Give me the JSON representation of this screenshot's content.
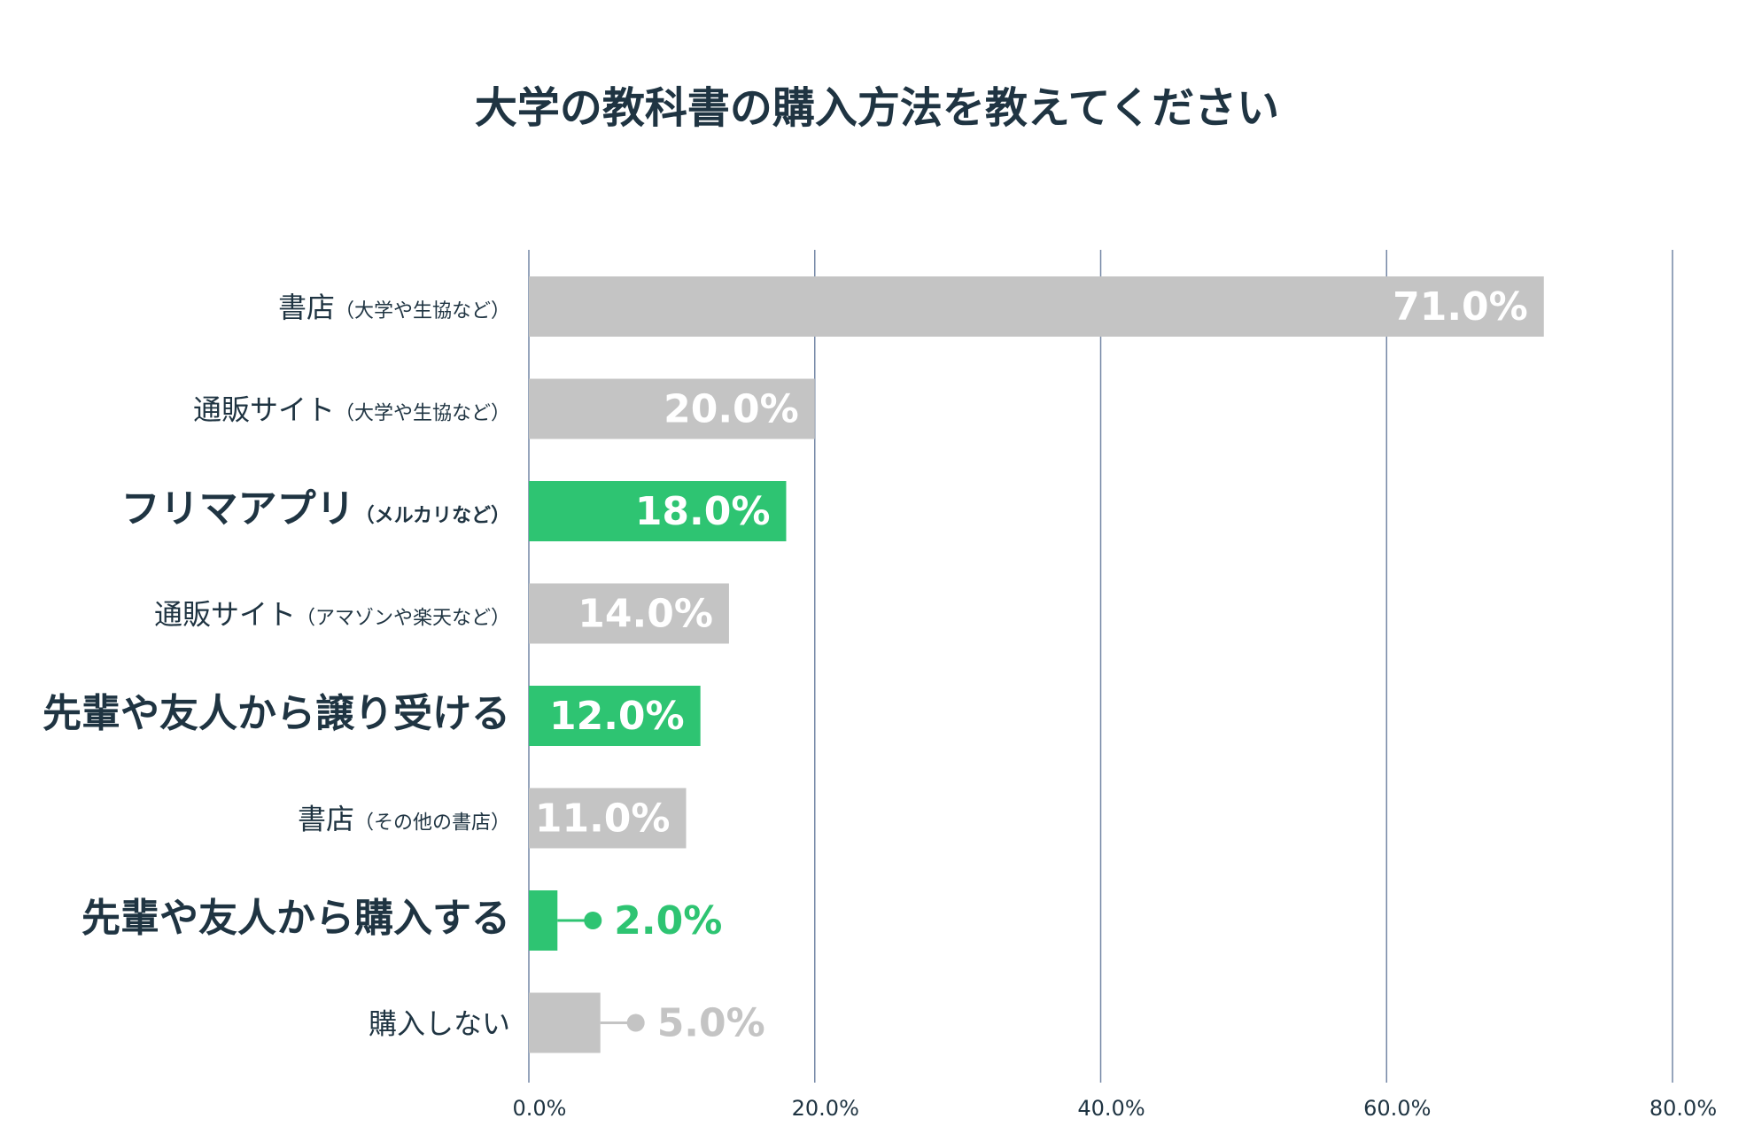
{
  "chart_data": {
    "type": "bar",
    "orientation": "horizontal",
    "title": "大学の教科書の購入方法を教えてください",
    "xlim": [
      0,
      80
    ],
    "xticks": [
      0,
      20,
      40,
      60,
      80
    ],
    "xtick_labels": [
      "0.0%",
      "20.0%",
      "40.0%",
      "60.0%",
      "80.0%"
    ],
    "grid": "vertical",
    "categories": [
      {
        "main": "書店",
        "sub": "（大学や生協など）",
        "value": 71.0,
        "label": "71.0%",
        "highlight": false
      },
      {
        "main": "通販サイト",
        "sub": "（大学や生協など）",
        "value": 20.0,
        "label": "20.0%",
        "highlight": false
      },
      {
        "main": "フリマアプリ",
        "sub": "（メルカリなど）",
        "value": 18.0,
        "label": "18.0%",
        "highlight": true
      },
      {
        "main": "通販サイト",
        "sub": "（アマゾンや楽天など）",
        "value": 14.0,
        "label": "14.0%",
        "highlight": false
      },
      {
        "main": "先輩や友人から譲り受ける",
        "sub": "",
        "value": 12.0,
        "label": "12.0%",
        "highlight": true
      },
      {
        "main": "書店",
        "sub": "（その他の書店）",
        "value": 11.0,
        "label": "11.0%",
        "highlight": false
      },
      {
        "main": "先輩や友人から購入する",
        "sub": "",
        "value": 2.0,
        "label": "2.0%",
        "highlight": true
      },
      {
        "main": "購入しない",
        "sub": "",
        "value": 5.0,
        "label": "5.0%",
        "highlight": false
      }
    ],
    "colors": {
      "default_bar": "#c4c4c4",
      "highlight_bar": "#2ec472",
      "grid": "#7487a6",
      "text": "#1f3442",
      "inside_label": "#ffffff"
    }
  }
}
